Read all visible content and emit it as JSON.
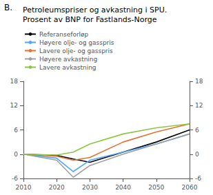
{
  "chart_data": {
    "type": "line",
    "title": "Petroleumspriser og avkastning i SPU.",
    "subtitle": "Prosent av BNP for Fastlands-Norge",
    "annotations": [
      "B."
    ],
    "x": [
      2010,
      2020,
      2025,
      2030,
      2040,
      2050,
      2060
    ],
    "series": [
      {
        "name": "Referanseforløp",
        "color": "#000000",
        "values": [
          0,
          -0.3,
          -1.2,
          -2.0,
          0.5,
          3.0,
          6.0
        ]
      },
      {
        "name": "Høyere olje- og gasspris",
        "color": "#4da6ff",
        "values": [
          0,
          -1.0,
          -4.3,
          -1.5,
          0.5,
          2.5,
          5.0
        ]
      },
      {
        "name": "Lavere olje- og gasspris",
        "color": "#e87030",
        "values": [
          0,
          -0.5,
          -1.5,
          -0.8,
          3.0,
          5.5,
          7.5
        ]
      },
      {
        "name": "Høyere avkastning",
        "color": "#a0a0a0",
        "values": [
          0,
          -1.5,
          -5.7,
          -2.8,
          0.0,
          2.5,
          5.0
        ]
      },
      {
        "name": "Lavere avkastning",
        "color": "#8dc63f",
        "values": [
          0,
          -0.2,
          0.5,
          2.5,
          5.0,
          6.5,
          7.5
        ]
      }
    ],
    "xlim": [
      2010,
      2060
    ],
    "xticks": [
      2010,
      2020,
      2030,
      2040,
      2050,
      2060
    ],
    "ylim": [
      -6,
      18
    ],
    "yticks": [
      -6,
      0,
      6,
      12,
      18
    ],
    "y2lim": [
      -6,
      18
    ],
    "y2ticks": [
      -6,
      0,
      6,
      12,
      18
    ],
    "grid": false,
    "legend": "upper left"
  }
}
